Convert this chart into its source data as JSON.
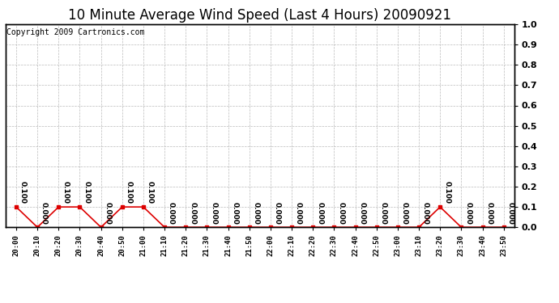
{
  "title": "10 Minute Average Wind Speed (Last 4 Hours) 20090921",
  "copyright_text": "Copyright 2009 Cartronics.com",
  "x_labels": [
    "20:00",
    "20:10",
    "20:20",
    "20:30",
    "20:40",
    "20:50",
    "21:00",
    "21:10",
    "21:20",
    "21:30",
    "21:40",
    "21:50",
    "22:00",
    "22:10",
    "22:20",
    "22:30",
    "22:40",
    "22:50",
    "23:00",
    "23:10",
    "23:20",
    "23:30",
    "23:40",
    "23:50"
  ],
  "y_values": [
    0.1,
    0.0,
    0.1,
    0.1,
    0.0,
    0.1,
    0.1,
    0.0,
    0.0,
    0.0,
    0.0,
    0.0,
    0.0,
    0.0,
    0.0,
    0.0,
    0.0,
    0.0,
    0.0,
    0.0,
    0.1,
    0.0,
    0.0,
    0.0
  ],
  "ylim": [
    0.0,
    1.0
  ],
  "yticks": [
    0.0,
    0.1,
    0.2,
    0.3,
    0.4,
    0.5,
    0.6,
    0.7,
    0.8,
    0.9,
    1.0
  ],
  "line_color": "#dd0000",
  "marker_color": "#dd0000",
  "grid_color": "#bbbbbb",
  "bg_color": "#ffffff",
  "title_fontsize": 12,
  "copyright_fontsize": 7,
  "value_fontsize": 6.5,
  "xlabel_fontsize": 6.5,
  "ylabel_fontsize": 8
}
